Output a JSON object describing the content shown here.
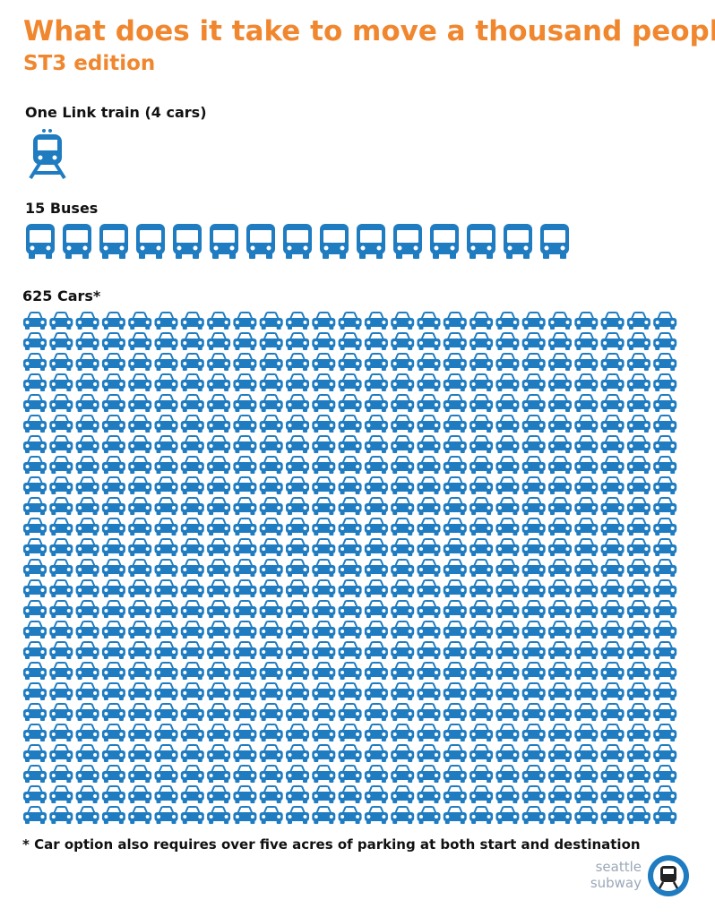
{
  "title": "What does it take to move a thousand people?",
  "subtitle": "ST3 edition",
  "sections": [
    {
      "label": "One Link train (4 cars)",
      "count": 1
    },
    {
      "label": "15 Buses",
      "count": 15
    },
    {
      "label": "625 Cars*",
      "count": 625
    }
  ],
  "footnote": "* Car option also requires over five acres of parking at both start and destination",
  "logo": {
    "line1": "seattle",
    "line2": "subway"
  },
  "color": "#1f7cc1",
  "accent": "#f0872f"
}
